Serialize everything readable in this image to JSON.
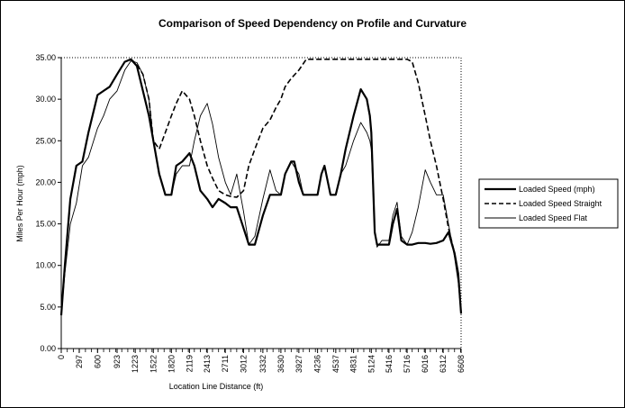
{
  "chart_data": {
    "type": "line",
    "title": "Comparison of Speed Dependency on Profile and Curvature",
    "xlabel": "Location Line Distance (ft)",
    "ylabel": "Miles Per Hour (mph)",
    "xlim": [
      0,
      6608
    ],
    "ylim": [
      0,
      35
    ],
    "x_ticks": [
      "0",
      "297",
      "600",
      "923",
      "1223",
      "1522",
      "1820",
      "2119",
      "2413",
      "2711",
      "3012",
      "3332",
      "3630",
      "3927",
      "4236",
      "4537",
      "4831",
      "5124",
      "5416",
      "5716",
      "6016",
      "6312",
      "6608"
    ],
    "y_ticks": [
      "0.00",
      "5.00",
      "10.00",
      "15.00",
      "20.00",
      "25.00",
      "30.00",
      "35.00"
    ],
    "grid": false,
    "legend_position": "right",
    "series": [
      {
        "name": "Loaded Speed (mph)",
        "style": "thick-solid",
        "color": "#000000",
        "points": [
          [
            0,
            4
          ],
          [
            60,
            10
          ],
          [
            150,
            18
          ],
          [
            250,
            22
          ],
          [
            350,
            22.5
          ],
          [
            450,
            26
          ],
          [
            600,
            30.5
          ],
          [
            700,
            31
          ],
          [
            800,
            31.5
          ],
          [
            923,
            33
          ],
          [
            1050,
            34.5
          ],
          [
            1150,
            34.8
          ],
          [
            1250,
            34
          ],
          [
            1350,
            31
          ],
          [
            1450,
            28
          ],
          [
            1522,
            25
          ],
          [
            1620,
            21
          ],
          [
            1720,
            18.5
          ],
          [
            1820,
            18.5
          ],
          [
            1900,
            22
          ],
          [
            2000,
            22.5
          ],
          [
            2119,
            23.5
          ],
          [
            2200,
            22
          ],
          [
            2300,
            19
          ],
          [
            2413,
            18
          ],
          [
            2500,
            17
          ],
          [
            2600,
            18
          ],
          [
            2711,
            17.5
          ],
          [
            2800,
            17
          ],
          [
            2900,
            17
          ],
          [
            3012,
            14.5
          ],
          [
            3100,
            12.5
          ],
          [
            3200,
            12.5
          ],
          [
            3332,
            16
          ],
          [
            3450,
            18.5
          ],
          [
            3550,
            18.5
          ],
          [
            3630,
            18.5
          ],
          [
            3700,
            21
          ],
          [
            3800,
            22.5
          ],
          [
            3850,
            22.5
          ],
          [
            3927,
            20
          ],
          [
            4000,
            18.5
          ],
          [
            4100,
            18.5
          ],
          [
            4236,
            18.5
          ],
          [
            4300,
            21
          ],
          [
            4350,
            22
          ],
          [
            4450,
            18.5
          ],
          [
            4537,
            18.5
          ],
          [
            4620,
            21
          ],
          [
            4700,
            24
          ],
          [
            4831,
            28
          ],
          [
            4950,
            31.2
          ],
          [
            5050,
            30
          ],
          [
            5100,
            28
          ],
          [
            5124,
            26
          ],
          [
            5180,
            14
          ],
          [
            5220,
            12.5
          ],
          [
            5300,
            12.5
          ],
          [
            5416,
            12.5
          ],
          [
            5480,
            15
          ],
          [
            5550,
            16.8
          ],
          [
            5620,
            13
          ],
          [
            5716,
            12.5
          ],
          [
            5800,
            12.5
          ],
          [
            5900,
            12.7
          ],
          [
            6016,
            12.7
          ],
          [
            6100,
            12.6
          ],
          [
            6200,
            12.7
          ],
          [
            6312,
            13
          ],
          [
            6400,
            14
          ],
          [
            6500,
            11.5
          ],
          [
            6560,
            9
          ],
          [
            6608,
            4.2
          ]
        ]
      },
      {
        "name": "Loaded Speed Straight",
        "style": "dashed",
        "color": "#000000",
        "points": [
          [
            1150,
            34.8
          ],
          [
            1250,
            34.2
          ],
          [
            1350,
            33
          ],
          [
            1450,
            30
          ],
          [
            1522,
            25
          ],
          [
            1620,
            24
          ],
          [
            1720,
            26
          ],
          [
            1820,
            28
          ],
          [
            1900,
            29.5
          ],
          [
            2000,
            31
          ],
          [
            2119,
            30
          ],
          [
            2200,
            28
          ],
          [
            2300,
            25
          ],
          [
            2413,
            22
          ],
          [
            2500,
            20.5
          ],
          [
            2600,
            19
          ],
          [
            2711,
            18.5
          ],
          [
            2800,
            18.3
          ],
          [
            2900,
            18.2
          ],
          [
            3012,
            19
          ],
          [
            3100,
            22
          ],
          [
            3200,
            24
          ],
          [
            3332,
            26.5
          ],
          [
            3450,
            27.5
          ],
          [
            3550,
            29
          ],
          [
            3630,
            30
          ],
          [
            3700,
            31.5
          ],
          [
            3800,
            32.5
          ],
          [
            3927,
            33.5
          ],
          [
            4050,
            34.8
          ],
          [
            4236,
            34.8
          ],
          [
            4537,
            34.8
          ],
          [
            4831,
            34.8
          ],
          [
            5124,
            34.8
          ],
          [
            5416,
            34.8
          ],
          [
            5716,
            34.8
          ],
          [
            5800,
            34.5
          ],
          [
            5900,
            32
          ],
          [
            6016,
            28
          ],
          [
            6100,
            25
          ],
          [
            6200,
            22
          ],
          [
            6312,
            18
          ],
          [
            6400,
            14.5
          ],
          [
            6500,
            11.5
          ],
          [
            6560,
            9
          ],
          [
            6608,
            4.2
          ]
        ]
      },
      {
        "name": "Loaded Speed Flat",
        "style": "thin-solid",
        "color": "#000000",
        "points": [
          [
            0,
            4
          ],
          [
            60,
            9
          ],
          [
            150,
            15
          ],
          [
            250,
            17.5
          ],
          [
            350,
            22
          ],
          [
            450,
            23
          ],
          [
            600,
            26.5
          ],
          [
            700,
            28
          ],
          [
            800,
            30
          ],
          [
            923,
            31
          ],
          [
            1050,
            33.5
          ],
          [
            1150,
            34.6
          ],
          [
            1250,
            34.4
          ],
          [
            1350,
            33
          ],
          [
            1450,
            30
          ],
          [
            1522,
            25
          ],
          [
            1620,
            21
          ],
          [
            1720,
            18.5
          ],
          [
            1820,
            18.5
          ],
          [
            1900,
            21
          ],
          [
            2000,
            22
          ],
          [
            2119,
            22
          ],
          [
            2200,
            25
          ],
          [
            2300,
            28
          ],
          [
            2413,
            29.5
          ],
          [
            2500,
            27
          ],
          [
            2600,
            23
          ],
          [
            2711,
            20
          ],
          [
            2800,
            18.5
          ],
          [
            2900,
            21
          ],
          [
            3012,
            16.5
          ],
          [
            3100,
            12.5
          ],
          [
            3200,
            13.5
          ],
          [
            3332,
            18
          ],
          [
            3450,
            21.5
          ],
          [
            3550,
            19
          ],
          [
            3630,
            18.5
          ],
          [
            3700,
            21
          ],
          [
            3800,
            22.5
          ],
          [
            3927,
            21
          ],
          [
            4000,
            18.5
          ],
          [
            4100,
            18.5
          ],
          [
            4236,
            18.5
          ],
          [
            4300,
            21
          ],
          [
            4350,
            22
          ],
          [
            4450,
            18.5
          ],
          [
            4537,
            18.5
          ],
          [
            4620,
            21
          ],
          [
            4700,
            22
          ],
          [
            4831,
            25
          ],
          [
            4950,
            27.2
          ],
          [
            5050,
            26
          ],
          [
            5100,
            25
          ],
          [
            5124,
            24
          ],
          [
            5180,
            14
          ],
          [
            5220,
            12.2
          ],
          [
            5300,
            13
          ],
          [
            5416,
            13
          ],
          [
            5480,
            16
          ],
          [
            5550,
            17.6
          ],
          [
            5620,
            13.5
          ],
          [
            5716,
            12.5
          ],
          [
            5800,
            14
          ],
          [
            5900,
            17
          ],
          [
            6016,
            21.5
          ],
          [
            6100,
            20
          ],
          [
            6200,
            18.5
          ],
          [
            6312,
            18.5
          ],
          [
            6400,
            15
          ],
          [
            6500,
            11
          ],
          [
            6560,
            8
          ],
          [
            6608,
            4.2
          ]
        ]
      }
    ]
  }
}
